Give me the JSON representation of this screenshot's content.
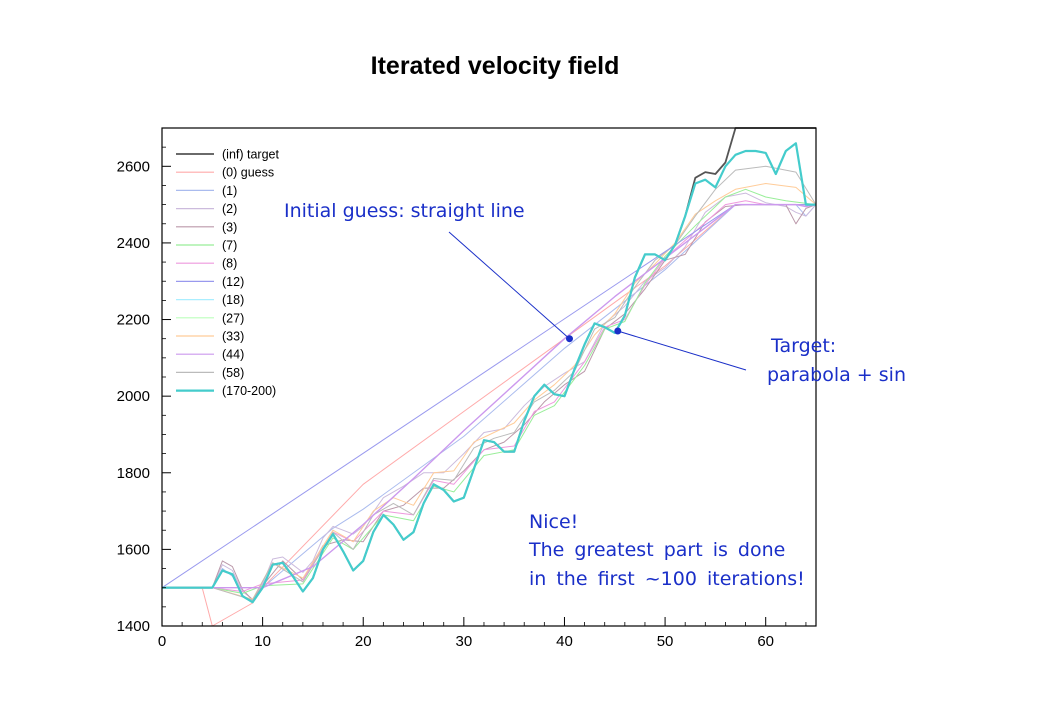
{
  "title": "Iterated velocity field",
  "chart_data": {
    "type": "line",
    "title": "Iterated velocity field",
    "xlim": [
      0,
      65
    ],
    "ylim": [
      1400,
      2700
    ],
    "x_ticks": [
      0,
      10,
      20,
      30,
      40,
      50,
      60
    ],
    "y_ticks": [
      1400,
      1600,
      1800,
      2000,
      2200,
      2400,
      2600
    ],
    "grid": false,
    "legend_position": "top-left",
    "legend": [
      {
        "label": "(inf) target",
        "color": "#555555"
      },
      {
        "label": "(0) guess",
        "color": "#ffaaaa"
      },
      {
        "label": "(1)",
        "color": "#aabbee"
      },
      {
        "label": "(2)",
        "color": "#ccbbdd"
      },
      {
        "label": "(3)",
        "color": "#bb99aa"
      },
      {
        "label": "(7)",
        "color": "#99ee99"
      },
      {
        "label": "(8)",
        "color": "#ee99dd"
      },
      {
        "label": "(12)",
        "color": "#9999ee"
      },
      {
        "label": "(18)",
        "color": "#aaeeff"
      },
      {
        "label": "(27)",
        "color": "#bbffbb"
      },
      {
        "label": "(33)",
        "color": "#ffcc99"
      },
      {
        "label": "(44)",
        "color": "#cc99ee"
      },
      {
        "label": "(58)",
        "color": "#bbbbbb"
      },
      {
        "label": "(170-200)",
        "color": "#44cccc"
      }
    ],
    "series": [
      {
        "name": "(inf) target",
        "color": "#555555",
        "width": 1.8,
        "x": [
          0,
          5,
          6,
          7,
          8,
          9,
          10,
          11,
          12,
          13,
          14,
          15,
          16,
          17,
          18,
          19,
          20,
          21,
          22,
          23,
          24,
          25,
          26,
          27,
          28,
          29,
          30,
          31,
          32,
          33,
          34,
          35,
          36,
          37,
          38,
          39,
          40,
          41,
          42,
          43,
          44,
          45,
          46,
          47,
          48,
          49,
          50,
          51,
          52,
          53,
          54,
          55,
          56,
          57,
          58,
          65
        ],
        "values": [
          1500,
          1500,
          1545,
          1535,
          1478,
          1462,
          1500,
          1560,
          1565,
          1530,
          1490,
          1525,
          1600,
          1640,
          1595,
          1545,
          1570,
          1645,
          1690,
          1665,
          1625,
          1645,
          1720,
          1770,
          1755,
          1725,
          1735,
          1810,
          1885,
          1880,
          1855,
          1855,
          1935,
          2000,
          2030,
          2005,
          2000,
          2070,
          2135,
          2190,
          2180,
          2165,
          2210,
          2310,
          2370,
          2370,
          2355,
          2395,
          2470,
          2570,
          2585,
          2580,
          2610,
          2700,
          2700,
          2700
        ]
      },
      {
        "name": "(0) guess",
        "color": "#ffaaaa",
        "width": 1,
        "x": [
          0,
          4,
          5,
          9,
          10,
          20,
          30,
          40,
          50,
          57,
          62,
          65
        ],
        "values": [
          1500,
          1500,
          1400,
          1460,
          1500,
          1770,
          1960,
          2150,
          2340,
          2500,
          2500,
          2500
        ]
      },
      {
        "name": "(1)",
        "color": "#aabbee",
        "width": 1,
        "x": [
          0,
          5,
          6,
          7,
          8,
          9,
          10,
          17,
          20,
          30,
          40,
          50,
          57,
          63,
          64,
          65
        ],
        "values": [
          1500,
          1500,
          1550,
          1530,
          1480,
          1462,
          1500,
          1655,
          1705,
          1895,
          2125,
          2330,
          2500,
          2500,
          2470,
          2500
        ]
      },
      {
        "name": "(2)",
        "color": "#ccbbdd",
        "width": 1,
        "x": [
          0,
          5,
          6,
          7,
          8,
          9,
          10,
          11,
          12,
          13,
          14,
          15,
          16,
          17,
          18,
          19,
          20,
          22,
          24,
          26,
          28,
          30,
          32,
          34,
          36,
          38,
          40,
          42,
          44,
          46,
          48,
          50,
          52,
          54,
          56,
          58,
          60,
          62,
          63,
          64,
          65
        ],
        "values": [
          1500,
          1500,
          1560,
          1545,
          1490,
          1470,
          1510,
          1575,
          1580,
          1560,
          1540,
          1570,
          1630,
          1660,
          1650,
          1640,
          1660,
          1735,
          1765,
          1800,
          1800,
          1850,
          1905,
          1915,
          1975,
          2025,
          2060,
          2090,
          2190,
          2235,
          2300,
          2335,
          2390,
          2480,
          2520,
          2530,
          2505,
          2495,
          2480,
          2470,
          2500
        ]
      },
      {
        "name": "(3)",
        "color": "#bb99aa",
        "width": 1,
        "x": [
          0,
          5,
          6,
          7,
          8,
          9,
          10,
          12,
          14,
          16,
          18,
          20,
          22,
          24,
          26,
          28,
          30,
          32,
          34,
          36,
          38,
          40,
          42,
          44,
          46,
          48,
          50,
          52,
          54,
          56,
          58,
          60,
          62,
          63,
          64,
          65
        ],
        "values": [
          1500,
          1500,
          1570,
          1555,
          1495,
          1468,
          1505,
          1570,
          1520,
          1610,
          1625,
          1620,
          1700,
          1715,
          1760,
          1760,
          1805,
          1860,
          1880,
          1925,
          1985,
          2030,
          2065,
          2175,
          2215,
          2280,
          2355,
          2370,
          2455,
          2495,
          2500,
          2500,
          2500,
          2450,
          2490,
          2500
        ]
      },
      {
        "name": "(8)",
        "color": "#ee99dd",
        "width": 1,
        "x": [
          0,
          5,
          8,
          10,
          14,
          17,
          19,
          22,
          25,
          27,
          29,
          32,
          35,
          37,
          39,
          42,
          44,
          46,
          48,
          50,
          53,
          56,
          58,
          60,
          62,
          65
        ],
        "values": [
          1500,
          1500,
          1490,
          1510,
          1520,
          1645,
          1620,
          1700,
          1690,
          1780,
          1770,
          1860,
          1870,
          1960,
          1985,
          2090,
          2180,
          2200,
          2290,
          2360,
          2430,
          2500,
          2510,
          2500,
          2500,
          2500
        ]
      },
      {
        "name": "(7)",
        "color": "#99ee99",
        "width": 1,
        "x": [
          0,
          5,
          8,
          10,
          14,
          17,
          19,
          22,
          25,
          27,
          29,
          32,
          35,
          37,
          39,
          42,
          44,
          46,
          48,
          50,
          53,
          56,
          58,
          60,
          62,
          65
        ],
        "values": [
          1500,
          1500,
          1485,
          1505,
          1510,
          1630,
          1600,
          1690,
          1675,
          1765,
          1750,
          1845,
          1860,
          1950,
          1975,
          2080,
          2175,
          2195,
          2295,
          2365,
          2445,
          2520,
          2540,
          2520,
          2510,
          2500
        ]
      },
      {
        "name": "(33)",
        "color": "#ffcc99",
        "width": 1,
        "x": [
          0,
          5,
          9,
          11,
          14,
          17,
          19,
          21,
          23,
          25,
          27,
          29,
          31,
          33,
          35,
          37,
          39,
          41,
          43,
          45,
          47,
          49,
          51,
          53,
          55,
          57,
          60,
          63,
          65
        ],
        "values": [
          1500,
          1500,
          1470,
          1565,
          1525,
          1650,
          1620,
          1700,
          1735,
          1715,
          1800,
          1805,
          1880,
          1905,
          1930,
          1990,
          2030,
          2080,
          2160,
          2215,
          2295,
          2345,
          2400,
          2475,
          2510,
          2540,
          2555,
          2545,
          2500
        ]
      },
      {
        "name": "(58)",
        "color": "#bbbbbb",
        "width": 1,
        "x": [
          0,
          5,
          9,
          11,
          14,
          17,
          19,
          21,
          23,
          25,
          27,
          29,
          31,
          33,
          35,
          37,
          39,
          41,
          43,
          45,
          47,
          49,
          51,
          53,
          55,
          57,
          60,
          63,
          65
        ],
        "values": [
          1500,
          1500,
          1468,
          1565,
          1515,
          1645,
          1600,
          1690,
          1720,
          1690,
          1785,
          1780,
          1865,
          1890,
          1905,
          1985,
          2015,
          2065,
          2175,
          2205,
          2285,
          2355,
          2395,
          2470,
          2540,
          2590,
          2600,
          2585,
          2500
        ]
      },
      {
        "name": "(12)",
        "color": "#9999ee",
        "width": 1,
        "x": [
          0,
          57,
          65
        ],
        "values": [
          1500,
          2500,
          2500
        ]
      },
      {
        "name": "(44)",
        "color": "#cc99ee",
        "width": 1.4,
        "x": [
          0,
          5,
          10,
          15,
          20,
          25,
          30,
          35,
          40,
          45,
          50,
          57,
          62,
          63,
          64,
          65
        ],
        "values": [
          1500,
          1500,
          1500,
          1555,
          1665,
          1785,
          1910,
          2030,
          2150,
          2260,
          2360,
          2500,
          2500,
          2500,
          2495,
          2500
        ]
      },
      {
        "name": "(170-200)",
        "color": "#44cccc",
        "width": 2.2,
        "x": [
          0,
          5,
          6,
          7,
          8,
          9,
          10,
          11,
          12,
          13,
          14,
          15,
          16,
          17,
          18,
          19,
          20,
          21,
          22,
          23,
          24,
          25,
          26,
          27,
          28,
          29,
          30,
          31,
          32,
          33,
          34,
          35,
          36,
          37,
          38,
          39,
          40,
          41,
          42,
          43,
          44,
          45,
          46,
          47,
          48,
          49,
          50,
          51,
          52,
          53,
          54,
          55,
          56,
          57,
          58,
          59,
          60,
          61,
          62,
          63,
          64,
          65
        ],
        "values": [
          1500,
          1500,
          1545,
          1535,
          1478,
          1462,
          1500,
          1560,
          1565,
          1530,
          1490,
          1525,
          1600,
          1640,
          1595,
          1545,
          1570,
          1645,
          1690,
          1665,
          1625,
          1645,
          1720,
          1770,
          1755,
          1725,
          1735,
          1810,
          1885,
          1880,
          1855,
          1855,
          1935,
          2000,
          2030,
          2005,
          2000,
          2070,
          2135,
          2190,
          2180,
          2165,
          2210,
          2310,
          2370,
          2370,
          2355,
          2395,
          2470,
          2555,
          2565,
          2545,
          2600,
          2630,
          2640,
          2640,
          2635,
          2580,
          2640,
          2660,
          2500,
          2500
        ]
      }
    ],
    "annotations": {
      "initial_guess": "Initial guess: straight line",
      "target_line1": "Target:",
      "target_line2": "parabola + sin",
      "nice_line1": "Nice!",
      "nice_line2": "The greatest part is done",
      "nice_line3": "in the first ~100 iterations!"
    },
    "annotation_color": "#1a2fc8",
    "markers": [
      {
        "x": 40.5,
        "y": 2150
      },
      {
        "x": 45.3,
        "y": 2170
      }
    ]
  }
}
